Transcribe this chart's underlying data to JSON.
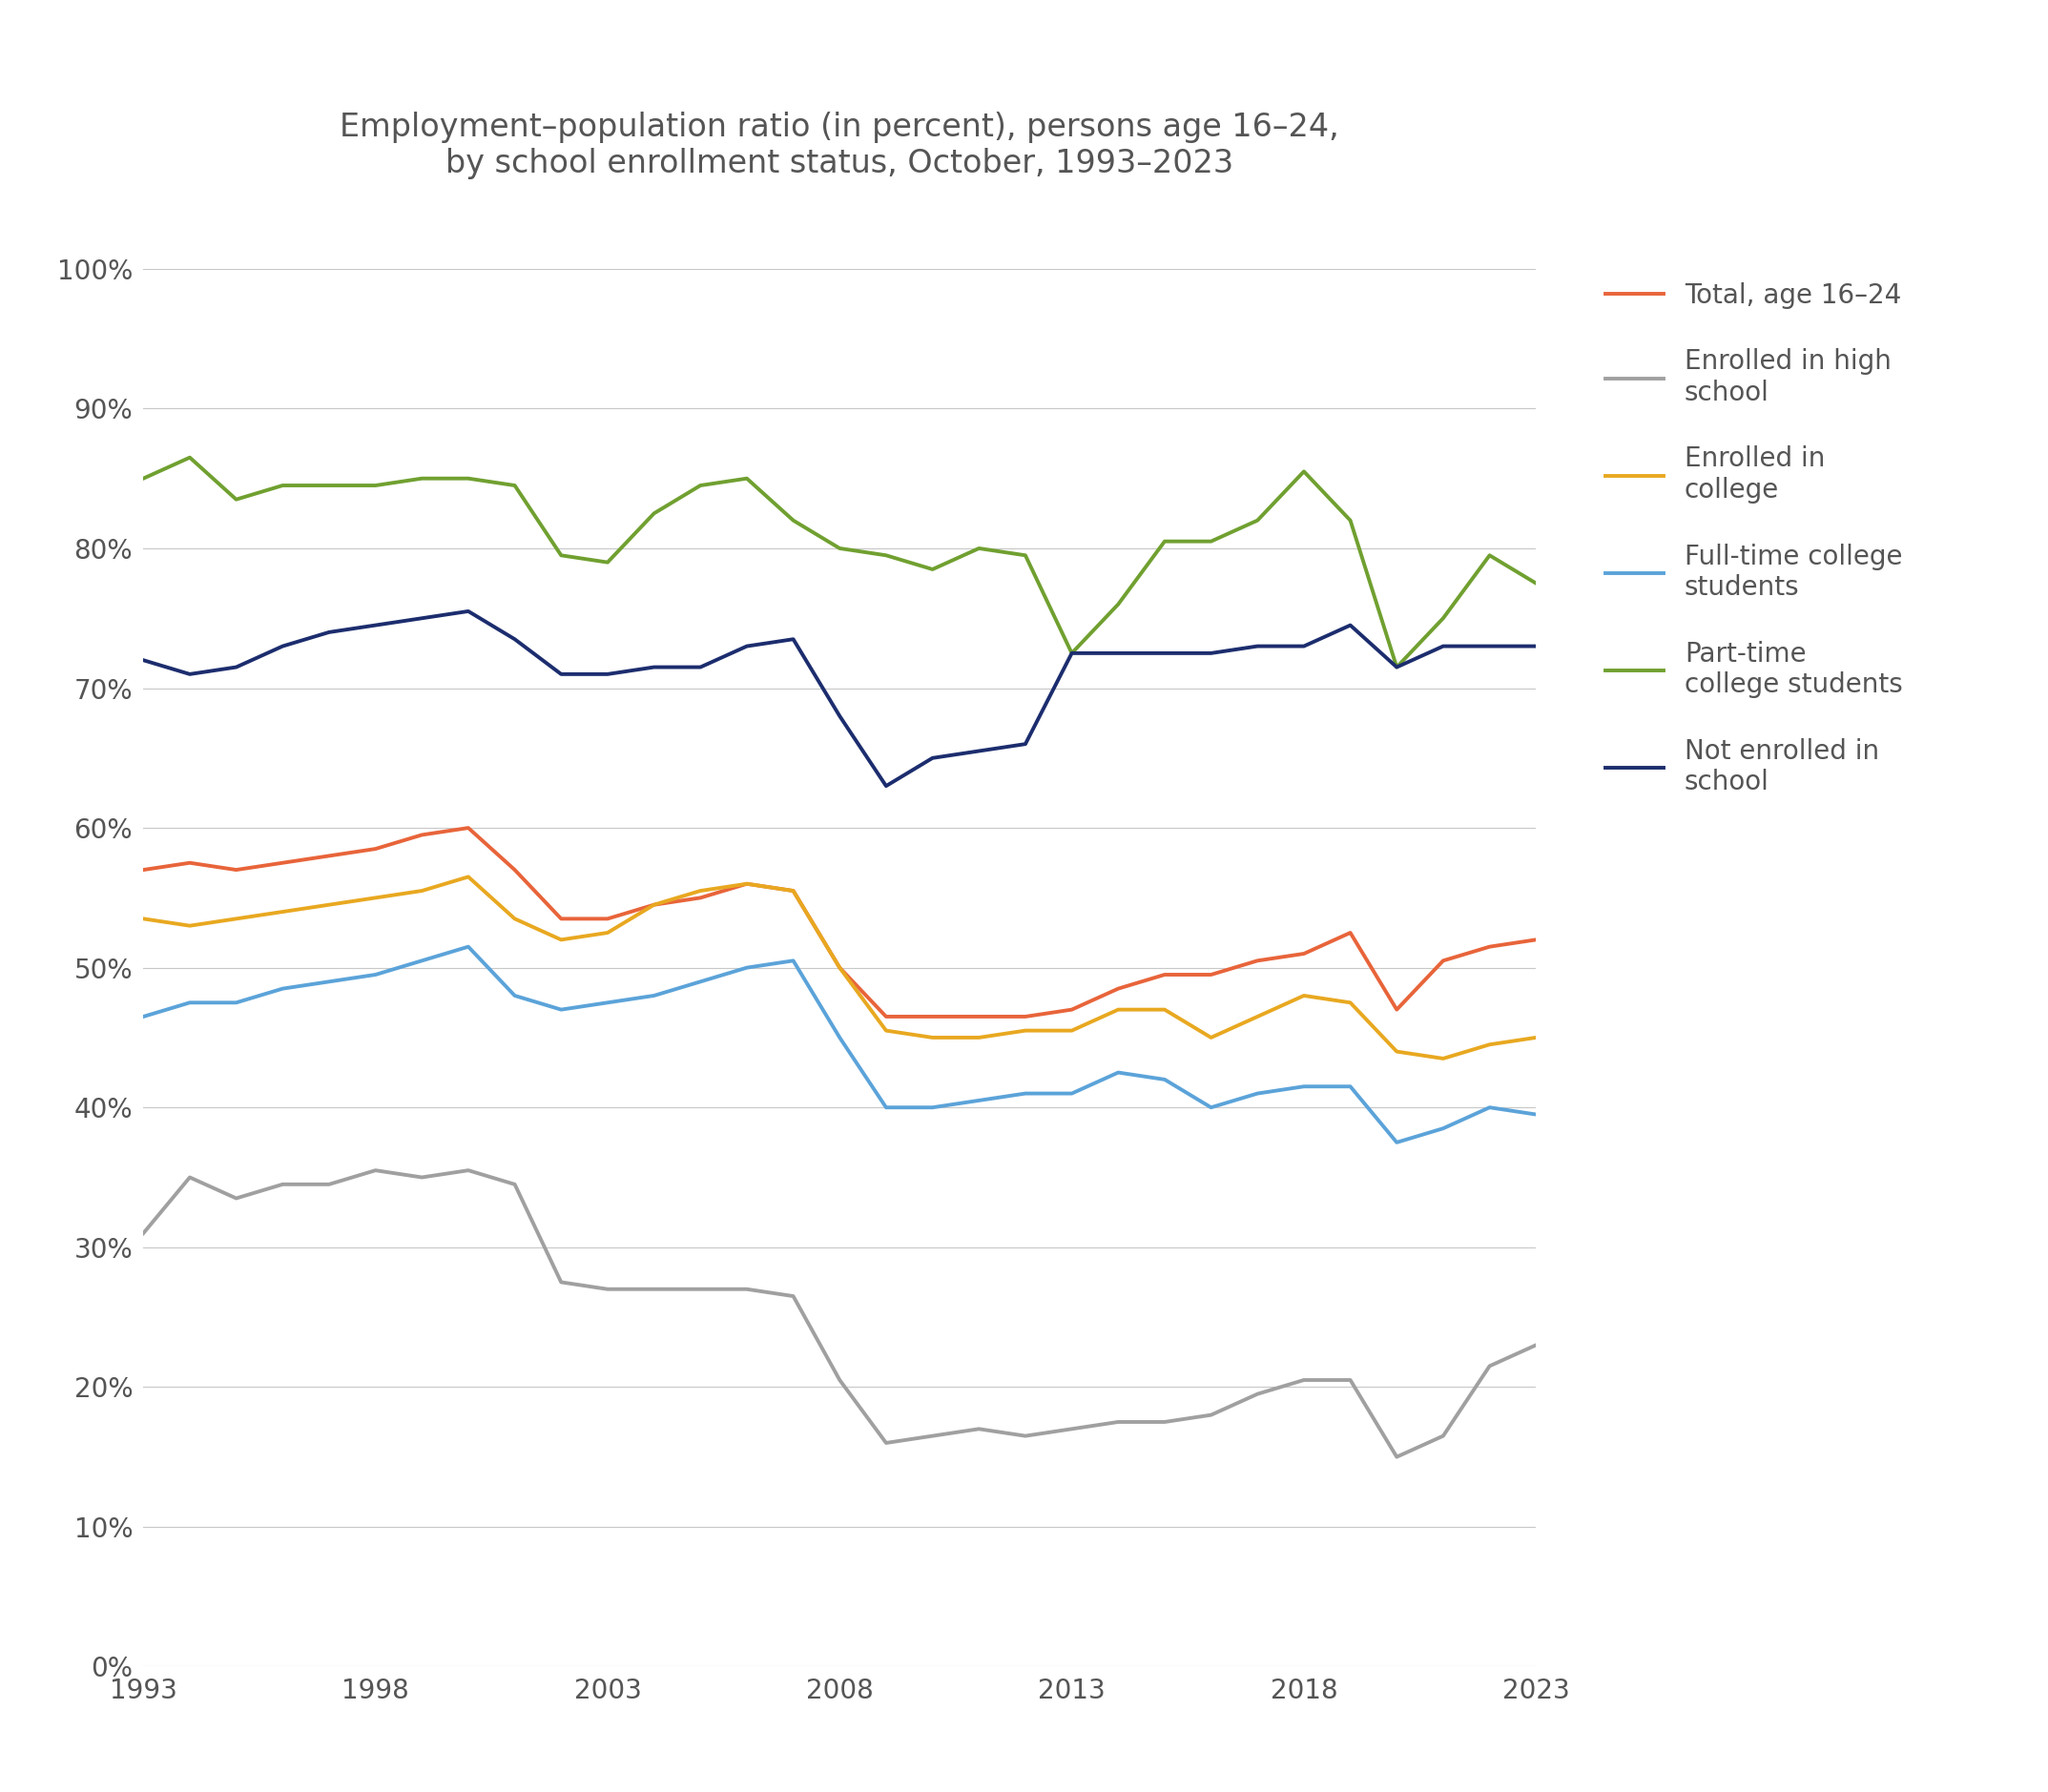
{
  "title": "Employment–population ratio (in percent), persons age 16–24,\nby school enrollment status, October, 1993–2023",
  "years": [
    1993,
    1994,
    1995,
    1996,
    1997,
    1998,
    1999,
    2000,
    2001,
    2002,
    2003,
    2004,
    2005,
    2006,
    2007,
    2008,
    2009,
    2010,
    2011,
    2012,
    2013,
    2014,
    2015,
    2016,
    2017,
    2018,
    2019,
    2020,
    2021,
    2022,
    2023
  ],
  "total_16_24": [
    57.0,
    57.5,
    57.0,
    57.5,
    58.0,
    58.5,
    59.5,
    60.0,
    57.0,
    53.5,
    53.5,
    54.5,
    55.0,
    56.0,
    55.5,
    50.0,
    46.5,
    46.5,
    46.5,
    46.5,
    47.0,
    48.5,
    49.5,
    49.5,
    50.5,
    51.0,
    52.5,
    47.0,
    50.5,
    51.5,
    52.0
  ],
  "enrolled_hs": [
    31.0,
    35.0,
    33.5,
    34.5,
    34.5,
    35.5,
    35.0,
    35.5,
    34.5,
    27.5,
    27.0,
    27.0,
    27.0,
    27.0,
    26.5,
    20.5,
    16.0,
    16.5,
    17.0,
    16.5,
    17.0,
    17.5,
    17.5,
    18.0,
    19.5,
    20.5,
    20.5,
    15.0,
    16.5,
    21.5,
    23.0
  ],
  "enrolled_college": [
    53.5,
    53.0,
    53.5,
    54.0,
    54.5,
    55.0,
    55.5,
    56.5,
    53.5,
    52.0,
    52.5,
    54.5,
    55.5,
    56.0,
    55.5,
    50.0,
    45.5,
    45.0,
    45.0,
    45.5,
    45.5,
    47.0,
    47.0,
    45.0,
    46.5,
    48.0,
    47.5,
    44.0,
    43.5,
    44.5,
    45.0
  ],
  "fulltime_college": [
    46.5,
    47.5,
    47.5,
    48.5,
    49.0,
    49.5,
    50.5,
    51.5,
    48.0,
    47.0,
    47.5,
    48.0,
    49.0,
    50.0,
    50.5,
    45.0,
    40.0,
    40.0,
    40.5,
    41.0,
    41.0,
    42.5,
    42.0,
    40.0,
    41.0,
    41.5,
    41.5,
    37.5,
    38.5,
    40.0,
    39.5
  ],
  "parttime_college": [
    85.0,
    86.5,
    83.5,
    84.5,
    84.5,
    84.5,
    85.0,
    85.0,
    84.5,
    79.5,
    79.0,
    82.5,
    84.5,
    85.0,
    82.0,
    80.0,
    79.5,
    78.5,
    80.0,
    79.5,
    72.5,
    76.0,
    80.5,
    80.5,
    82.0,
    85.5,
    82.0,
    71.5,
    75.0,
    79.5,
    77.5
  ],
  "not_enrolled": [
    72.0,
    71.0,
    71.5,
    73.0,
    74.0,
    74.5,
    75.0,
    75.5,
    73.5,
    71.0,
    71.0,
    71.5,
    71.5,
    73.0,
    73.5,
    68.0,
    63.0,
    65.0,
    65.5,
    66.0,
    72.5,
    72.5,
    72.5,
    72.5,
    73.0,
    73.0,
    74.5,
    71.5,
    73.0,
    73.0,
    73.0
  ],
  "colors": {
    "total_16_24": "#E8643A",
    "enrolled_hs": "#A0A0A0",
    "enrolled_college": "#E8A820",
    "fulltime_college": "#5BA3D9",
    "parttime_college": "#70A030",
    "not_enrolled": "#1C2D6E"
  },
  "legend_labels": {
    "total_16_24": "Total, age 16–24",
    "enrolled_hs": "Enrolled in high\nschool",
    "enrolled_college": "Enrolled in\ncollege",
    "fulltime_college": "Full-time college\nstudents",
    "parttime_college": "Part-time\ncollege students",
    "not_enrolled": "Not enrolled in\nschool"
  },
  "ylim": [
    0,
    100
  ],
  "yticks": [
    0,
    10,
    20,
    30,
    40,
    50,
    60,
    70,
    80,
    90,
    100
  ],
  "xticks": [
    1993,
    1998,
    2003,
    2008,
    2013,
    2018,
    2023
  ],
  "background_color": "#FFFFFF",
  "grid_color": "#C8C8C8",
  "title_fontsize": 24,
  "tick_fontsize": 20,
  "legend_fontsize": 20,
  "line_width": 2.8
}
